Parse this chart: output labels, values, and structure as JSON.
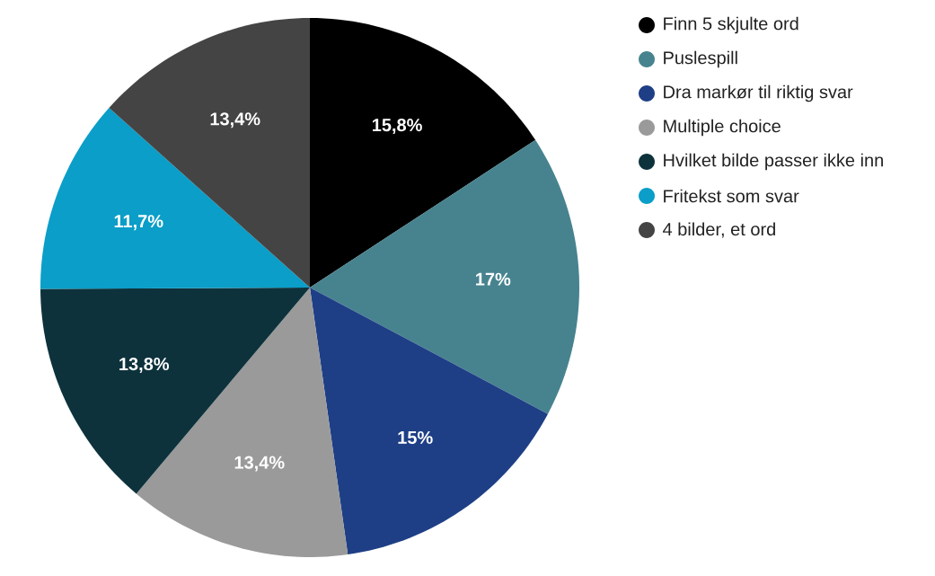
{
  "chart_data": {
    "type": "pie",
    "categories": [
      "Finn 5 skjulte ord",
      "Puslespill",
      "Dra markør til riktig svar",
      "Multiple choice",
      "Hvilket bilde passer ikke inn",
      "Fritekst som svar",
      "4 bilder, et ord"
    ],
    "values": [
      15.8,
      17,
      15,
      13.4,
      13.8,
      11.7,
      13.4
    ],
    "value_labels": [
      "15,8%",
      "17%",
      "15%",
      "13,4%",
      "13,8%",
      "11,7%",
      "13,4%"
    ],
    "colors": [
      "#000000",
      "#47838f",
      "#1e3f86",
      "#9a9a9a",
      "#0d323c",
      "#0a9ec8",
      "#444444"
    ],
    "legend": "top right"
  }
}
